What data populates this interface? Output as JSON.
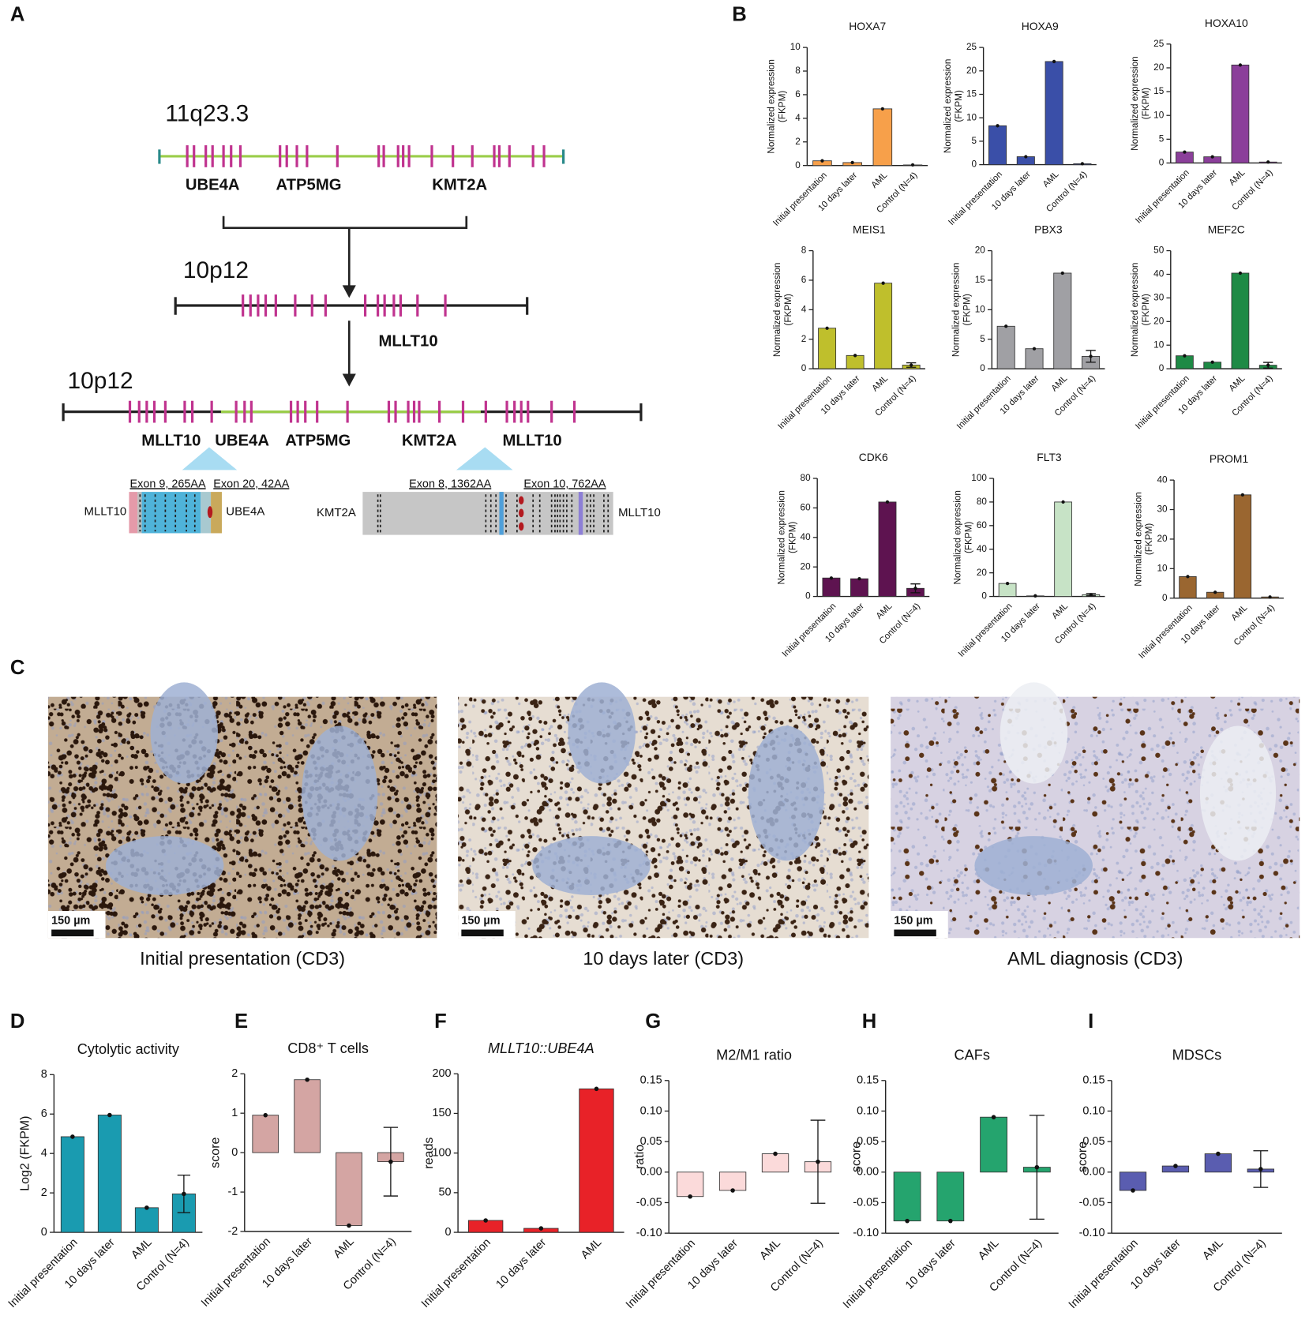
{
  "panel_labels": [
    "A",
    "B",
    "C",
    "D",
    "E",
    "F",
    "G",
    "H",
    "I"
  ],
  "diagram": {
    "chromosome_1": "11q23.3",
    "genes_1": [
      "UBE4A",
      "ATP5MG",
      "KMT2A"
    ],
    "chromosome_2": "10p12",
    "gene_2": "MLLT10",
    "chromosome_3": "10p12",
    "genes_3": [
      "MLLT10",
      "UBE4A",
      "ATP5MG",
      "KMT2A",
      "MLLT10"
    ],
    "fusion_1": {
      "left": "MLLT10",
      "right": "UBE4A",
      "exon_left": "Exon 9, 265AA",
      "exon_right": "Exon 20, 42AA"
    },
    "fusion_2": {
      "left": "KMT2A",
      "right": "MLLT10",
      "exon_left": "Exon 8, 1362AA",
      "exon_right": "Exon 10, 762AA"
    }
  },
  "micrographs": [
    {
      "caption": "Initial presentation (CD3)",
      "scale_bar": "150 µm"
    },
    {
      "caption": "10 days later (CD3)",
      "scale_bar": "150 µm"
    },
    {
      "caption": "AML diagnosis (CD3)",
      "scale_bar": "150 µm"
    }
  ],
  "chart_data": [
    {
      "type": "bar",
      "title": "HOXA7",
      "ylabel": [
        "Normalized expression",
        "(FKPM)"
      ],
      "categories": [
        "Initial presentation",
        "10 days later",
        "AML",
        "Control (N=4)"
      ],
      "values": [
        0.4,
        0.25,
        4.8,
        0.05
      ],
      "color": "#f7a04a",
      "ylim": [
        0,
        10
      ],
      "yticks": [
        0,
        2,
        4,
        6,
        8,
        10
      ]
    },
    {
      "type": "bar",
      "title": "HOXA9",
      "ylabel": [
        "Normalized expression",
        "(FKPM)"
      ],
      "categories": [
        "Initial presentation",
        "10 days later",
        "AML",
        "Control (N=4)"
      ],
      "values": [
        8.3,
        1.7,
        22,
        0.2
      ],
      "color": "#3a4fa8",
      "ylim": [
        0,
        25
      ],
      "yticks": [
        0,
        5,
        10,
        15,
        20,
        25
      ]
    },
    {
      "type": "bar",
      "title": "HOXA10",
      "ylabel": [
        "Normalized expression",
        "(FKPM)"
      ],
      "categories": [
        "Initial presentation",
        "10 days later",
        "AML",
        "Control (N=4)"
      ],
      "values": [
        2.3,
        1.3,
        20.6,
        0.2
      ],
      "color": "#8b3f9a",
      "ylim": [
        0,
        25
      ],
      "yticks": [
        0,
        5,
        10,
        15,
        20,
        25
      ]
    },
    {
      "type": "bar",
      "title": "MEIS1",
      "ylabel": [
        "Normalized expression",
        "(FKPM)"
      ],
      "categories": [
        "Initial presentation",
        "10 days later",
        "AML",
        "Control (N=4)"
      ],
      "values": [
        2.75,
        0.9,
        5.8,
        0.25
      ],
      "errors": [
        null,
        null,
        null,
        0.15
      ],
      "color": "#bfbf2c",
      "ylim": [
        0,
        8
      ],
      "yticks": [
        0,
        2,
        4,
        6,
        8
      ]
    },
    {
      "type": "bar",
      "title": "PBX3",
      "ylabel": [
        "Normalized expression",
        "(FKPM)"
      ],
      "categories": [
        "Initial presentation",
        "10 days later",
        "AML",
        "Control (N=4)"
      ],
      "values": [
        7.2,
        3.4,
        16.2,
        2.1
      ],
      "errors": [
        null,
        null,
        null,
        1
      ],
      "color": "#a0a0a4",
      "ylim": [
        0,
        20
      ],
      "yticks": [
        0,
        5,
        10,
        15,
        20
      ]
    },
    {
      "type": "bar",
      "title": "MEF2C",
      "ylabel": [
        "Normalized expression",
        "(FKPM)"
      ],
      "categories": [
        "Initial presentation",
        "10 days later",
        "AML",
        "Control (N=4)"
      ],
      "values": [
        5.5,
        2.8,
        40.5,
        1.5
      ],
      "errors": [
        null,
        null,
        null,
        1.2
      ],
      "color": "#1e8a45",
      "ylim": [
        0,
        50
      ],
      "yticks": [
        0,
        10,
        20,
        30,
        40,
        50
      ]
    },
    {
      "type": "bar",
      "title": "CDK6",
      "ylabel": [
        "Normalized expression",
        "(FKPM)"
      ],
      "categories": [
        "Initial presentation",
        "10 days later",
        "AML",
        "Control (N=4)"
      ],
      "values": [
        12.5,
        12,
        64,
        5.5
      ],
      "errors": [
        null,
        null,
        null,
        3
      ],
      "color": "#5e1350",
      "ylim": [
        0,
        80
      ],
      "yticks": [
        0,
        20,
        40,
        60,
        80
      ]
    },
    {
      "type": "bar",
      "title": "FLT3",
      "ylabel": [
        "Normalized expression",
        "(FKPM)"
      ],
      "categories": [
        "Initial presentation",
        "10 days later",
        "AML",
        "Control (N=4)"
      ],
      "values": [
        11,
        0.5,
        80,
        1.5
      ],
      "errors": [
        null,
        null,
        null,
        1
      ],
      "color": "#c7e3c6",
      "ylim": [
        0,
        100
      ],
      "yticks": [
        0,
        20,
        40,
        60,
        80,
        100
      ]
    },
    {
      "type": "bar",
      "title": "PROM1",
      "ylabel": [
        "Normalized expression",
        "(FKPM)"
      ],
      "categories": [
        "Initial presentation",
        "10 days later",
        "AML",
        "Control (N=4)"
      ],
      "values": [
        7.3,
        2,
        35,
        0.4
      ],
      "color": "#9a6630",
      "ylim": [
        0,
        40
      ],
      "yticks": [
        0,
        10,
        20,
        30,
        40
      ]
    },
    {
      "type": "bar",
      "title": "Cytolytic activity",
      "ylabel": [
        "Log2 (FKPM)"
      ],
      "categories": [
        "Initial presentation",
        "10 days later",
        "AML",
        "Control (N=4)"
      ],
      "values": [
        4.85,
        5.95,
        1.25,
        1.95
      ],
      "errors": [
        null,
        null,
        null,
        0.95
      ],
      "color": "#1a9bb0",
      "ylim": [
        0,
        8
      ],
      "yticks": [
        0,
        2,
        4,
        6,
        8
      ]
    },
    {
      "type": "bar",
      "title": "CD8⁺ T cells",
      "ylabel": [
        "score"
      ],
      "categories": [
        "Initial presentation",
        "10 days later",
        "AML",
        "Control (N=4)"
      ],
      "values": [
        0.95,
        1.85,
        -1.85,
        -0.23
      ],
      "errors": [
        null,
        null,
        null,
        0.87
      ],
      "color": "#d4a5a3",
      "ylim": [
        -2,
        2
      ],
      "yticks": [
        -2,
        -1,
        0,
        1,
        2
      ]
    },
    {
      "type": "bar",
      "title": "MLLT10::UBE4A",
      "title_style": "italic",
      "ylabel": [
        "reads"
      ],
      "categories": [
        "Initial presentation",
        "10 days later",
        "AML"
      ],
      "values": [
        15,
        5,
        181
      ],
      "color": "#e82228",
      "ylim": [
        0,
        200
      ],
      "yticks": [
        0,
        50,
        100,
        150,
        200
      ]
    },
    {
      "type": "bar",
      "title": "M2/M1 ratio",
      "ylabel": [
        "ratio"
      ],
      "categories": [
        "Initial presentation",
        "10 days later",
        "AML",
        "Control (N=4)"
      ],
      "values": [
        -0.04,
        -0.03,
        0.03,
        0.017
      ],
      "errors": [
        null,
        null,
        null,
        0.068
      ],
      "color": "#fbdada",
      "ylim": [
        -0.1,
        0.15
      ],
      "yticks": [
        {
          "value": -0.1,
          "label": "-0.10"
        },
        {
          "value": -0.05,
          "label": "-0.05"
        },
        {
          "value": 0,
          "label": "0.00"
        },
        {
          "value": 0.05,
          "label": "0.05"
        },
        {
          "value": 0.1,
          "label": "0.10"
        },
        {
          "value": 0.15,
          "label": "0.15"
        }
      ]
    },
    {
      "type": "bar",
      "title": "CAFs",
      "ylabel": [
        "score"
      ],
      "categories": [
        "Initial presentation",
        "10 days later",
        "AML",
        "Control (N=4)"
      ],
      "values": [
        -0.08,
        -0.08,
        0.09,
        0.008
      ],
      "errors": [
        null,
        null,
        null,
        0.085
      ],
      "color": "#25a46e",
      "ylim": [
        -0.1,
        0.15
      ],
      "yticks": [
        {
          "value": -0.1,
          "label": "-0.10"
        },
        {
          "value": -0.05,
          "label": "-0.05"
        },
        {
          "value": 0,
          "label": "0.00"
        },
        {
          "value": 0.05,
          "label": "0.05"
        },
        {
          "value": 0.1,
          "label": "0.10"
        },
        {
          "value": 0.15,
          "label": "0.15"
        }
      ]
    },
    {
      "type": "bar",
      "title": "MDSCs",
      "ylabel": [
        "score"
      ],
      "categories": [
        "Initial presentation",
        "10 days later",
        "AML",
        "Control (N=4)"
      ],
      "values": [
        -0.03,
        0.01,
        0.03,
        0.005
      ],
      "errors": [
        null,
        null,
        null,
        0.03
      ],
      "color": "#5a5db0",
      "ylim": [
        -0.1,
        0.15
      ],
      "yticks": [
        {
          "value": -0.1,
          "label": "-0.10"
        },
        {
          "value": -0.05,
          "label": "-0.05"
        },
        {
          "value": 0,
          "label": "0.00"
        },
        {
          "value": 0.05,
          "label": "0.05"
        },
        {
          "value": 0.1,
          "label": "0.10"
        },
        {
          "value": 0.15,
          "label": "0.15"
        }
      ]
    }
  ]
}
